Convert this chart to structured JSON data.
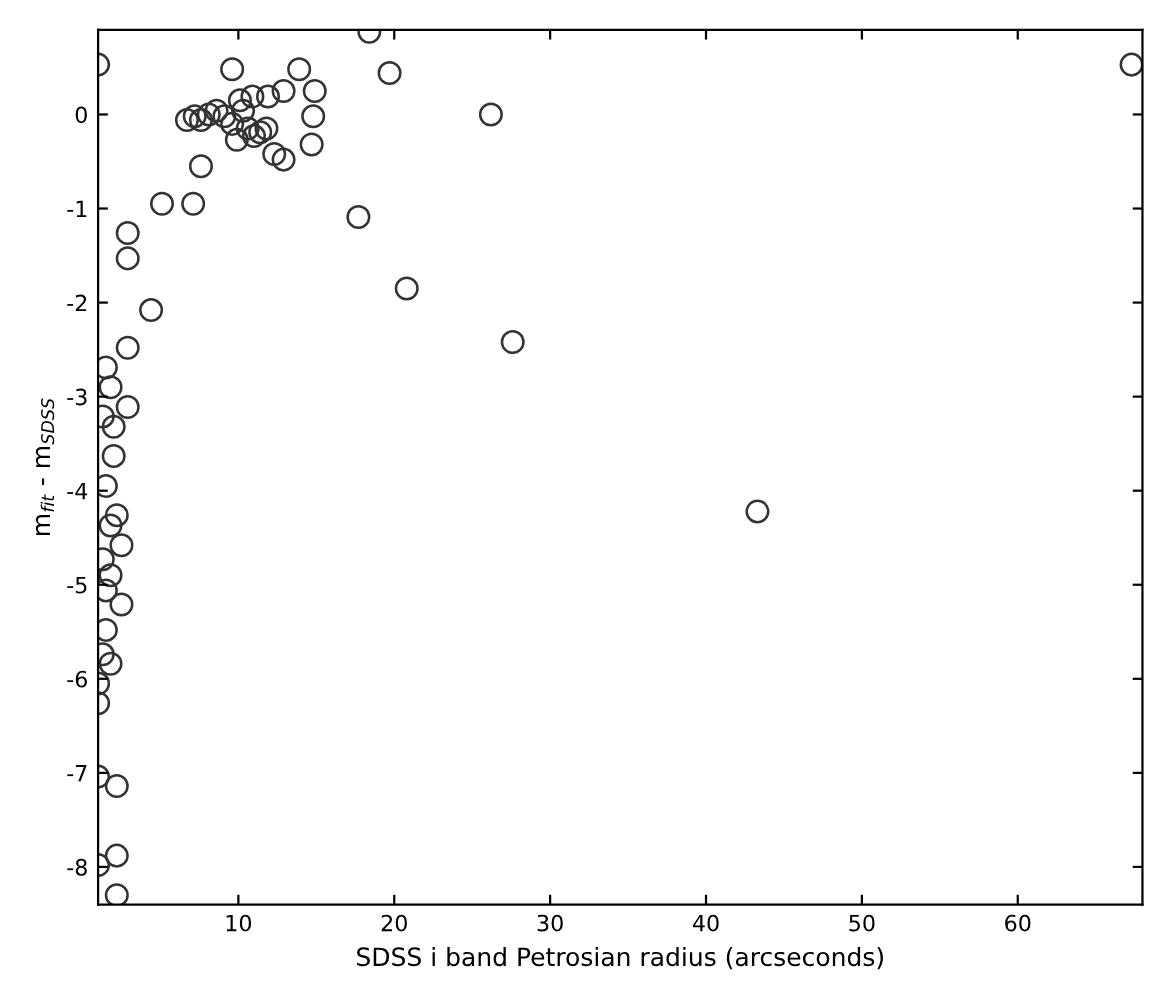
{
  "chart_data": {
    "type": "scatter",
    "xlabel": "SDSS i band Petrosian radius (arcseconds)",
    "ylabel": "m$_{fit}$ - m$_{SDSS}$",
    "xlim": [
      1,
      68
    ],
    "ylim": [
      -8.4,
      0.9
    ],
    "xticks": [
      10,
      20,
      30,
      40,
      50,
      60
    ],
    "yticks": [
      -8,
      -7,
      -6,
      -5,
      -4,
      -3,
      -2,
      -1,
      0
    ],
    "grid": false,
    "legend": false,
    "marker": "circle",
    "series": [
      {
        "color": "#333333",
        "x": [
          1.0,
          18.4,
          19.7,
          26.2,
          9.6,
          13.9,
          12.9,
          14.9,
          6.7,
          7.2,
          7.6,
          8.1,
          8.6,
          9.1,
          9.6,
          9.9,
          10.3,
          10.6,
          11.0,
          11.4,
          11.8,
          12.3,
          12.9,
          10.1,
          10.9,
          11.9,
          14.8,
          14.7,
          7.6,
          5.1,
          7.1,
          17.7,
          2.9,
          2.9,
          4.4,
          20.8,
          27.6,
          43.3,
          67.3,
          2.9,
          1.5,
          1.8,
          2.9,
          1.3,
          2.0,
          2.0,
          1.5,
          2.2,
          1.8,
          2.5,
          1.3,
          1.8,
          1.5,
          2.5,
          1.5,
          1.3,
          1.8,
          1.0,
          1.0,
          1.0,
          2.2,
          2.2,
          1.0,
          2.2
        ],
        "values": [
          0.53,
          0.88,
          0.44,
          0.0,
          0.48,
          0.48,
          0.25,
          0.25,
          -0.06,
          -0.02,
          -0.06,
          0.0,
          0.04,
          -0.02,
          -0.1,
          -0.27,
          0.04,
          -0.15,
          -0.23,
          -0.19,
          -0.15,
          -0.42,
          -0.48,
          0.15,
          0.19,
          0.19,
          -0.02,
          -0.32,
          -0.55,
          -0.95,
          -0.95,
          -1.09,
          -1.26,
          -1.53,
          -2.08,
          -1.85,
          -2.42,
          -4.22,
          0.53,
          -2.48,
          -2.69,
          -2.9,
          -3.11,
          -3.21,
          -3.32,
          -3.63,
          -3.95,
          -4.26,
          -4.37,
          -4.58,
          -4.73,
          -4.9,
          -5.06,
          -5.21,
          -5.48,
          -5.74,
          -5.84,
          -6.05,
          -6.26,
          -7.04,
          -7.14,
          -7.88,
          -7.98,
          -8.3
        ]
      }
    ]
  }
}
